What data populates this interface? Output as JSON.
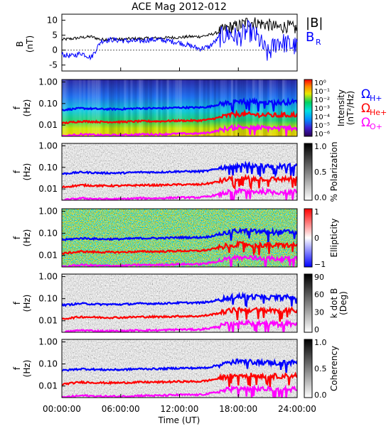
{
  "title": "ACE Mag 2012-012",
  "xlabel": "Time (UT)",
  "x_ticks": [
    "00:00:00",
    "06:00:00",
    "12:00:00",
    "18:00:00",
    "24:00:00"
  ],
  "colors": {
    "b_total": "#000000",
    "b_r": "#0000ff",
    "f_h": "#0000ff",
    "f_he": "#ff0000",
    "f_o": "#ff00ff"
  },
  "legend": {
    "b_total": "|B|",
    "b_r_main": "B",
    "b_r_sub": "R",
    "omega": "Ω",
    "h_sub": "H+",
    "he_sub": "He+",
    "o_sub": "O+"
  },
  "chart_data": [
    {
      "type": "line",
      "panel": "magnetic-field",
      "ylabel": "B",
      "yunit": "(nT)",
      "y_ticks": [
        "10",
        "5",
        "0",
        "-5"
      ],
      "ylim": [
        -7,
        12
      ],
      "x_hours": [
        0,
        1,
        2,
        3,
        4,
        5,
        6,
        7,
        8,
        9,
        10,
        11,
        12,
        13,
        14,
        15,
        16,
        17,
        18,
        19,
        20,
        21,
        22,
        23,
        24
      ],
      "series": [
        {
          "name": "|B|",
          "values": [
            3.5,
            3.8,
            4.2,
            4.5,
            3.5,
            3.8,
            3.6,
            3.8,
            3.8,
            4.0,
            4.0,
            4.2,
            4.2,
            4.5,
            4.5,
            5.0,
            6.0,
            7.5,
            8.0,
            9.5,
            9.0,
            8.5,
            7.5,
            8.0,
            7.0
          ]
        },
        {
          "name": "B_R",
          "values": [
            -1.5,
            -2.0,
            -1.0,
            -2.5,
            3.0,
            3.5,
            3.2,
            3.0,
            3.0,
            3.5,
            3.4,
            3.0,
            2.5,
            1.5,
            0.5,
            1.0,
            4.0,
            5.5,
            4.0,
            6.5,
            4.0,
            -1.5,
            3.0,
            2.0,
            1.0
          ]
        }
      ]
    },
    {
      "type": "heatmap",
      "panel": "power-spectrum",
      "ylabel": "f",
      "yunit": "(Hz)",
      "y_ticks": [
        "1.00",
        "0.10",
        "0.01"
      ],
      "colorbar_label": "Intensity",
      "colorbar_unit": "(nT²/Hz)",
      "colorbar_ticks": [
        "10⁰",
        "10⁻¹",
        "10⁻²",
        "10⁻³",
        "10⁻⁴",
        "10⁻⁵",
        "10⁻⁶"
      ]
    },
    {
      "type": "heatmap",
      "panel": "polarization",
      "ylabel": "f",
      "yunit": "(Hz)",
      "y_ticks": [
        "1.00",
        "0.10",
        "0.01"
      ],
      "colorbar_label": "% Polarization",
      "colorbar_ticks": [
        "1.0",
        "0.5",
        "0.0"
      ]
    },
    {
      "type": "heatmap",
      "panel": "ellipticity",
      "ylabel": "f",
      "yunit": "(Hz)",
      "y_ticks": [
        "1.00",
        "0.10",
        "0.01"
      ],
      "colorbar_label": "Ellipticity",
      "colorbar_ticks": [
        "1",
        "0",
        "−1"
      ]
    },
    {
      "type": "heatmap",
      "panel": "wave-normal-angle",
      "ylabel": "f",
      "yunit": "(Hz)",
      "y_ticks": [
        "1.00",
        "0.10",
        "0.01"
      ],
      "colorbar_label": "k dot B",
      "colorbar_unit": "(Deg)",
      "colorbar_ticks": [
        "90",
        "60",
        "30",
        "0"
      ]
    },
    {
      "type": "heatmap",
      "panel": "coherency",
      "ylabel": "f",
      "yunit": "(Hz)",
      "y_ticks": [
        "1.00",
        "0.10",
        "0.01"
      ],
      "colorbar_label": "Coherency",
      "colorbar_ticks": [
        "1.0",
        "0.5",
        "0.0"
      ]
    }
  ],
  "gyrofrequencies": {
    "x_hours": [
      0,
      2,
      4,
      6,
      8,
      10,
      12,
      14,
      15,
      16,
      17,
      18,
      20,
      22,
      24
    ],
    "H+": [
      0.05,
      0.06,
      0.055,
      0.055,
      0.06,
      0.06,
      0.065,
      0.065,
      0.07,
      0.09,
      0.11,
      0.13,
      0.12,
      0.11,
      0.12
    ],
    "He+": [
      0.012,
      0.015,
      0.014,
      0.014,
      0.015,
      0.015,
      0.016,
      0.016,
      0.018,
      0.022,
      0.028,
      0.032,
      0.03,
      0.028,
      0.03
    ],
    "O+": [
      0.003,
      0.0037,
      0.0034,
      0.0034,
      0.0037,
      0.0037,
      0.004,
      0.004,
      0.0045,
      0.0055,
      0.007,
      0.008,
      0.0075,
      0.007,
      0.0075
    ]
  }
}
